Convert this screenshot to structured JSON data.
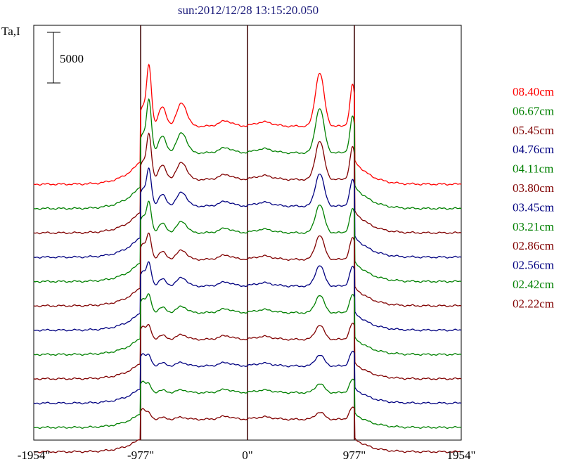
{
  "chart_data": {
    "type": "line",
    "title": "sun:2012/12/28 13:15:20.050",
    "ylabel": "Ta,I",
    "scale_bar_label": "5000",
    "x_ticks": [
      "-1954\"",
      "-977\"",
      "0\"",
      "977\"",
      "1954\""
    ],
    "x_tick_values": [
      -1954,
      -977,
      0,
      977,
      1954
    ],
    "xlim": [
      -1954,
      1954
    ],
    "vertical_markers": [
      -977,
      0,
      977
    ],
    "grid": false,
    "legend_placement": "right",
    "colors": {
      "red": "#ff0000",
      "green": "#008000",
      "maroon": "#800000",
      "navy": "#000080",
      "axis": "#000000",
      "marker": "#3a0000",
      "title": "#1a1a7a"
    },
    "series": [
      {
        "name": "08.40cm",
        "color": "#ff0000",
        "limb_left": 1.0,
        "limb_right": 0.92,
        "bump_right": 0.62
      },
      {
        "name": "06.67cm",
        "color": "#008000",
        "limb_left": 0.9,
        "limb_right": 0.8,
        "bump_right": 0.52
      },
      {
        "name": "05.45cm",
        "color": "#800000",
        "limb_left": 0.8,
        "limb_right": 0.72,
        "bump_right": 0.45
      },
      {
        "name": "04.76cm",
        "color": "#000080",
        "limb_left": 0.68,
        "limb_right": 0.64,
        "bump_right": 0.3
      },
      {
        "name": "04.11cm",
        "color": "#008000",
        "limb_left": 0.58,
        "limb_right": 0.58,
        "bump_right": 0.26
      },
      {
        "name": "03.80cm",
        "color": "#800000",
        "limb_left": 0.5,
        "limb_right": 0.52,
        "bump_right": 0.22
      },
      {
        "name": "03.45cm",
        "color": "#000080",
        "limb_left": 0.48,
        "limb_right": 0.47,
        "bump_right": 0.18
      },
      {
        "name": "03.21cm",
        "color": "#008000",
        "limb_left": 0.38,
        "limb_right": 0.42,
        "bump_right": 0.16
      },
      {
        "name": "02.86cm",
        "color": "#800000",
        "limb_left": 0.3,
        "limb_right": 0.36,
        "bump_right": 0.12
      },
      {
        "name": "02.56cm",
        "color": "#000080",
        "limb_left": 0.24,
        "limb_right": 0.3,
        "bump_right": 0.1
      },
      {
        "name": "02.42cm",
        "color": "#008000",
        "limb_left": 0.2,
        "limb_right": 0.26,
        "bump_right": 0.08
      },
      {
        "name": "02.22cm",
        "color": "#800000",
        "limb_left": 0.15,
        "limb_right": 0.22,
        "bump_right": 0.06
      }
    ]
  }
}
